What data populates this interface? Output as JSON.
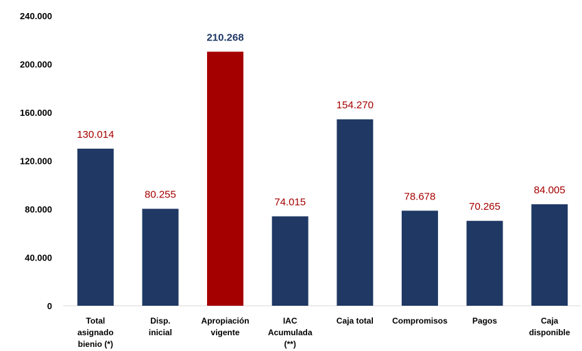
{
  "chart_data": {
    "type": "bar",
    "title": "",
    "xlabel": "",
    "ylabel": "",
    "ylim": [
      0,
      240000
    ],
    "yticks": [
      0,
      40000,
      80000,
      120000,
      160000,
      200000,
      240000
    ],
    "ytick_labels": [
      "0",
      "40.000",
      "80.000",
      "120.000",
      "160.000",
      "200.000",
      "240.000"
    ],
    "grid": false,
    "legend": "none",
    "categories": [
      "Total asignado bienio (*)",
      "Disp. inicial",
      "Apropiación vigente",
      "IAC Acumulada (**)",
      "Caja total",
      "Compromisos",
      "Pagos",
      "Caja disponible"
    ],
    "category_lines": [
      [
        "Total",
        "asignado",
        "bienio (*)"
      ],
      [
        "Disp.",
        "inicial"
      ],
      [
        "Apropiación",
        "vigente"
      ],
      [
        "IAC",
        "Acumulada",
        "(**)"
      ],
      [
        "Caja total"
      ],
      [
        "Compromisos"
      ],
      [
        "Pagos"
      ],
      [
        "Caja",
        "disponible"
      ]
    ],
    "values": [
      130014,
      80255,
      210268,
      74015,
      154270,
      78678,
      70265,
      84005
    ],
    "data_labels": [
      "130.014",
      "80.255",
      "210.268",
      "74.015",
      "154.270",
      "78.678",
      "70.265",
      "84.005"
    ],
    "highlight_index": 2,
    "colors": {
      "bar": "#1f3864",
      "highlight_bar": "#a50000",
      "data_label": "#a50000",
      "highlight_label": "#1f3864",
      "axis": "#d9d9d9"
    }
  }
}
